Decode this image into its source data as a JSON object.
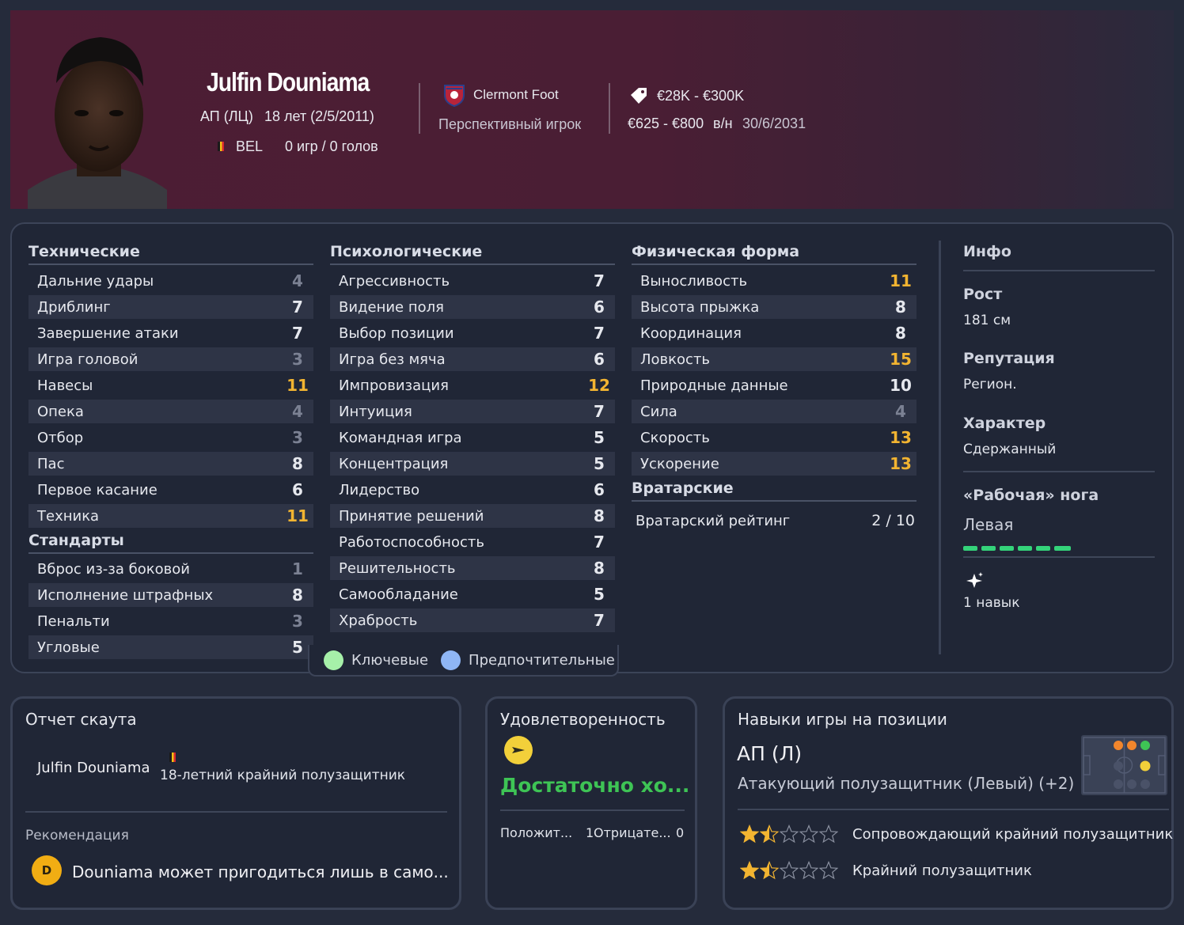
{
  "header": {
    "name": "Julfin Douniama",
    "position": "АП (ЛЦ)",
    "age": "18 лет (2/5/2011)",
    "nation": "BEL",
    "stats": "0 игр / 0 голов",
    "club": "Clermont Foot",
    "status": "Перспективный игрок",
    "value": "€28K - €300K",
    "wage": "€625 - €800",
    "wage_unit": "в/н",
    "contract": "30/6/2031"
  },
  "technical": {
    "title": "Технические",
    "items": [
      {
        "label": "Дальние удары",
        "value": "4"
      },
      {
        "label": "Дриблинг",
        "value": "7"
      },
      {
        "label": "Завершение атаки",
        "value": "7"
      },
      {
        "label": "Игра головой",
        "value": "3"
      },
      {
        "label": "Навесы",
        "value": "11"
      },
      {
        "label": "Опека",
        "value": "4"
      },
      {
        "label": "Отбор",
        "value": "3"
      },
      {
        "label": "Пас",
        "value": "8"
      },
      {
        "label": "Первое касание",
        "value": "6"
      },
      {
        "label": "Техника",
        "value": "11"
      }
    ]
  },
  "set_pieces": {
    "title": "Стандарты",
    "items": [
      {
        "label": "Вброс из-за боковой",
        "value": "1"
      },
      {
        "label": "Исполнение штрафных",
        "value": "8"
      },
      {
        "label": "Пенальти",
        "value": "3"
      },
      {
        "label": "Угловые",
        "value": "5"
      }
    ]
  },
  "mental": {
    "title": "Психологические",
    "items": [
      {
        "label": "Агрессивность",
        "value": "7"
      },
      {
        "label": "Видение поля",
        "value": "6"
      },
      {
        "label": "Выбор позиции",
        "value": "7"
      },
      {
        "label": "Игра без мяча",
        "value": "6"
      },
      {
        "label": "Импровизация",
        "value": "12"
      },
      {
        "label": "Интуиция",
        "value": "7"
      },
      {
        "label": "Командная игра",
        "value": "5"
      },
      {
        "label": "Концентрация",
        "value": "5"
      },
      {
        "label": "Лидерство",
        "value": "6"
      },
      {
        "label": "Принятие решений",
        "value": "8"
      },
      {
        "label": "Работоспособность",
        "value": "7"
      },
      {
        "label": "Решительность",
        "value": "8"
      },
      {
        "label": "Самообладание",
        "value": "5"
      },
      {
        "label": "Храбрость",
        "value": "7"
      }
    ]
  },
  "physical": {
    "title": "Физическая форма",
    "items": [
      {
        "label": "Выносливость",
        "value": "11"
      },
      {
        "label": "Высота прыжка",
        "value": "8"
      },
      {
        "label": "Координация",
        "value": "8"
      },
      {
        "label": "Ловкость",
        "value": "15"
      },
      {
        "label": "Природные данные",
        "value": "10"
      },
      {
        "label": "Сила",
        "value": "4"
      },
      {
        "label": "Скорость",
        "value": "13"
      },
      {
        "label": "Ускорение",
        "value": "13"
      }
    ]
  },
  "goalkeeping": {
    "title": "Вратарские",
    "label": "Вратарский рейтинг",
    "value": "2 / 10"
  },
  "legend": {
    "key": "Ключевые",
    "preferred": "Предпочтительные",
    "key_color": "#a6f0a9",
    "preferred_color": "#8fb6f5"
  },
  "info": {
    "title": "Инфо",
    "height_label": "Рост",
    "height": "181 см",
    "reputation_label": "Репутация",
    "reputation": "Регион.",
    "personality_label": "Характер",
    "personality": "Сдержанный",
    "foot_label": "«Рабочая» нога",
    "foot": "Левая",
    "foot_level": 0.6,
    "traits": "1 навык"
  },
  "scout": {
    "title": "Отчет скаута",
    "player": "Julfin Douniama",
    "desc": "18-летний крайний полузащитник",
    "rec_label": "Рекомендация",
    "grade": "D",
    "rec_text": "Douniama может пригодиться лишь в само..."
  },
  "happiness": {
    "title": "Удовлетворенность",
    "status": "Достаточно хо...",
    "positive_label": "Положит...",
    "positive": "1",
    "negative_label": "Отрицате...",
    "negative": "0"
  },
  "positions": {
    "title": "Навыки игры на позиции",
    "pos": "АП (Л)",
    "role": "Атакующий полузащитник (Левый) (+2)",
    "roles": [
      {
        "name": "Сопровождающий крайний полузащитник",
        "stars": 1.5
      },
      {
        "name": "Крайний полузащитник",
        "stars": 1.5
      }
    ]
  }
}
